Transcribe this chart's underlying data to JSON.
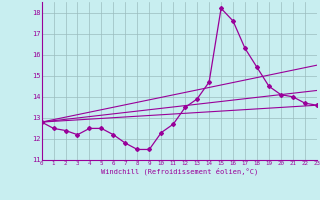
{
  "xlabel": "Windchill (Refroidissement éolien,°C)",
  "ylim": [
    11,
    18.5
  ],
  "xlim": [
    0,
    23
  ],
  "yticks": [
    11,
    12,
    13,
    14,
    15,
    16,
    17,
    18
  ],
  "xticks": [
    0,
    1,
    2,
    3,
    4,
    5,
    6,
    7,
    8,
    9,
    10,
    11,
    12,
    13,
    14,
    15,
    16,
    17,
    18,
    19,
    20,
    21,
    22,
    23
  ],
  "bg_color": "#c8eef0",
  "line_color": "#990099",
  "grid_color": "#9bbcbe",
  "series1_x": [
    0,
    1,
    2,
    3,
    4,
    5,
    6,
    7,
    8,
    9,
    10,
    11,
    12,
    13,
    14,
    15,
    16,
    17,
    18,
    19,
    20,
    21,
    22,
    23
  ],
  "series1_y": [
    12.8,
    12.5,
    12.4,
    12.2,
    12.5,
    12.5,
    12.2,
    11.8,
    11.5,
    11.5,
    12.3,
    12.7,
    13.5,
    13.9,
    14.7,
    18.2,
    17.6,
    16.3,
    15.4,
    14.5,
    14.1,
    14.0,
    13.7,
    13.6
  ],
  "trend1_x": [
    0,
    23
  ],
  "trend1_y": [
    12.8,
    13.6
  ],
  "trend2_x": [
    0,
    23
  ],
  "trend2_y": [
    12.8,
    14.3
  ],
  "trend3_x": [
    0,
    23
  ],
  "trend3_y": [
    12.8,
    15.5
  ]
}
